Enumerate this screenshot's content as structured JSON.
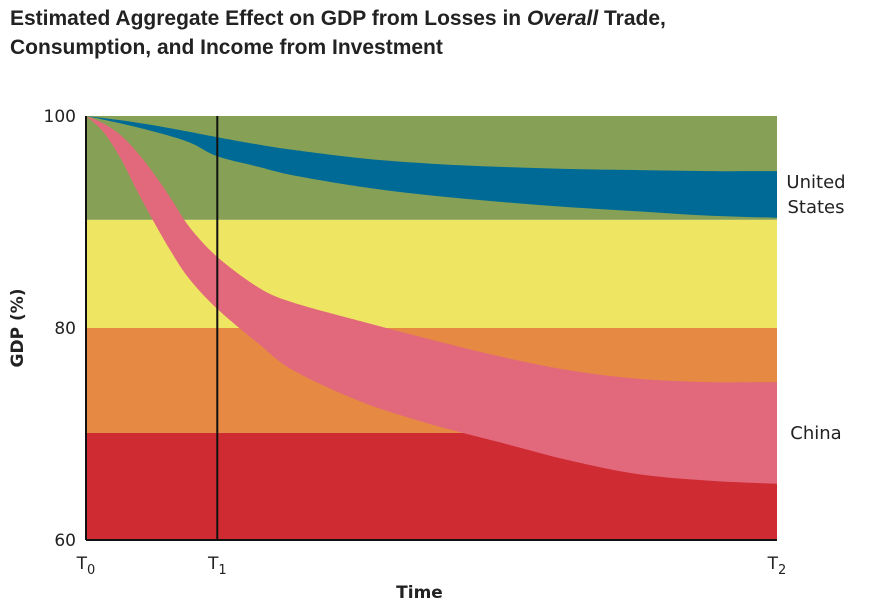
{
  "title": {
    "part1": "Estimated Aggregate Effect on GDP from Losses in ",
    "emphasis": "Overall",
    "part2": " Trade,",
    "line2": "Consumption, and Income from Investment"
  },
  "chart_data": {
    "type": "area",
    "xlabel": "Time",
    "ylabel": "GDP (%)",
    "ylim": [
      60,
      100
    ],
    "y_ticks": [
      "100",
      "80",
      "60"
    ],
    "x_ticks": [
      {
        "base": "T",
        "sub": "0"
      },
      {
        "base": "T",
        "sub": "1"
      },
      {
        "base": "T",
        "sub": "2"
      }
    ],
    "x_domain": [
      0,
      1
    ],
    "x_tick_positions": [
      0,
      0.19,
      1
    ],
    "reference_line_x": 0.19,
    "bands": [
      {
        "from": 90.2,
        "to": 100,
        "color": "#86a155"
      },
      {
        "from": 80,
        "to": 90.2,
        "color": "#eee663"
      },
      {
        "from": 70.1,
        "to": 80,
        "color": "#e68a43"
      },
      {
        "from": 60,
        "to": 70.1,
        "color": "#cf2b33"
      }
    ],
    "series": [
      {
        "name": "United States",
        "label_lines": [
          "United",
          "States"
        ],
        "color": "#006a96",
        "x": [
          0,
          0.05,
          0.1,
          0.15,
          0.19,
          0.25,
          0.3,
          0.4,
          0.5,
          0.6,
          0.7,
          0.8,
          0.9,
          1.0
        ],
        "upper": [
          100,
          99.6,
          99.1,
          98.5,
          98.0,
          97.3,
          96.8,
          96.0,
          95.5,
          95.2,
          95.0,
          94.9,
          94.8,
          94.8
        ],
        "lower": [
          100,
          99.3,
          98.5,
          97.5,
          96.2,
          95.2,
          94.4,
          93.3,
          92.5,
          91.9,
          91.4,
          91.0,
          90.6,
          90.4
        ]
      },
      {
        "name": "China",
        "label_lines": [
          "China"
        ],
        "color": "#e2687b",
        "x": [
          0,
          0.025,
          0.05,
          0.075,
          0.1,
          0.125,
          0.15,
          0.19,
          0.25,
          0.3,
          0.4,
          0.5,
          0.6,
          0.7,
          0.8,
          0.9,
          1.0
        ],
        "upper": [
          100,
          99.3,
          98.2,
          96.5,
          94.4,
          92.0,
          89.5,
          86.7,
          83.8,
          82.4,
          80.6,
          78.9,
          77.3,
          76.0,
          75.2,
          74.9,
          74.9
        ],
        "lower": [
          100,
          98.5,
          96.0,
          92.8,
          89.8,
          87.0,
          84.6,
          81.8,
          78.5,
          76.0,
          73.0,
          70.9,
          69.2,
          67.5,
          66.2,
          65.6,
          65.3
        ]
      }
    ]
  }
}
